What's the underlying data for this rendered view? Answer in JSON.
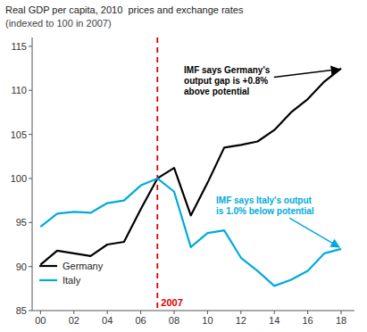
{
  "chart_data": {
    "type": "line",
    "title": "Real GDP per capita, 2010  prices and exchange rates",
    "subtitle": "(indexed to 100 in 2007)",
    "x": [
      0,
      1,
      2,
      3,
      4,
      5,
      6,
      7,
      8,
      9,
      10,
      11,
      12,
      13,
      14,
      15,
      16,
      17,
      18
    ],
    "series": [
      {
        "name": "Germany",
        "color": "#000000",
        "values": [
          90.2,
          91.8,
          91.5,
          91.2,
          92.5,
          92.8,
          96.5,
          100.0,
          101.2,
          95.8,
          99.5,
          103.5,
          103.8,
          104.2,
          105.5,
          107.5,
          109.0,
          111.0,
          112.5
        ]
      },
      {
        "name": "Italy",
        "color": "#00aadd",
        "values": [
          94.5,
          96.0,
          96.2,
          96.1,
          97.2,
          97.5,
          99.2,
          100.0,
          98.5,
          92.2,
          93.8,
          94.1,
          91.0,
          89.5,
          87.8,
          88.5,
          89.5,
          91.5,
          92.0
        ]
      }
    ],
    "xlim": [
      -0.5,
      18.8
    ],
    "ylim": [
      85,
      116
    ],
    "xticks": [
      {
        "value": 0,
        "label": "00"
      },
      {
        "value": 2,
        "label": "02"
      },
      {
        "value": 4,
        "label": "04"
      },
      {
        "value": 6,
        "label": "06"
      },
      {
        "value": 8,
        "label": "08"
      },
      {
        "value": 10,
        "label": "10"
      },
      {
        "value": 12,
        "label": "12"
      },
      {
        "value": 14,
        "label": "14"
      },
      {
        "value": 16,
        "label": "16"
      },
      {
        "value": 18,
        "label": "18"
      }
    ],
    "yticks": [
      85,
      90,
      95,
      100,
      105,
      110,
      115
    ],
    "grid": false,
    "legend": "lower left",
    "annotations": [
      {
        "type": "vline",
        "x": 7,
        "text": "2007",
        "color": "#dd0000"
      },
      {
        "text": "IMF says Germany's\noutput gap is +0.8%\nabove potential",
        "x": 18,
        "y": 112.5,
        "color": "#000000"
      },
      {
        "text": "IMF says Italy's output\nis 1.0% below potential",
        "x": 18,
        "y": 92.0,
        "color": "#00aadd"
      }
    ]
  }
}
